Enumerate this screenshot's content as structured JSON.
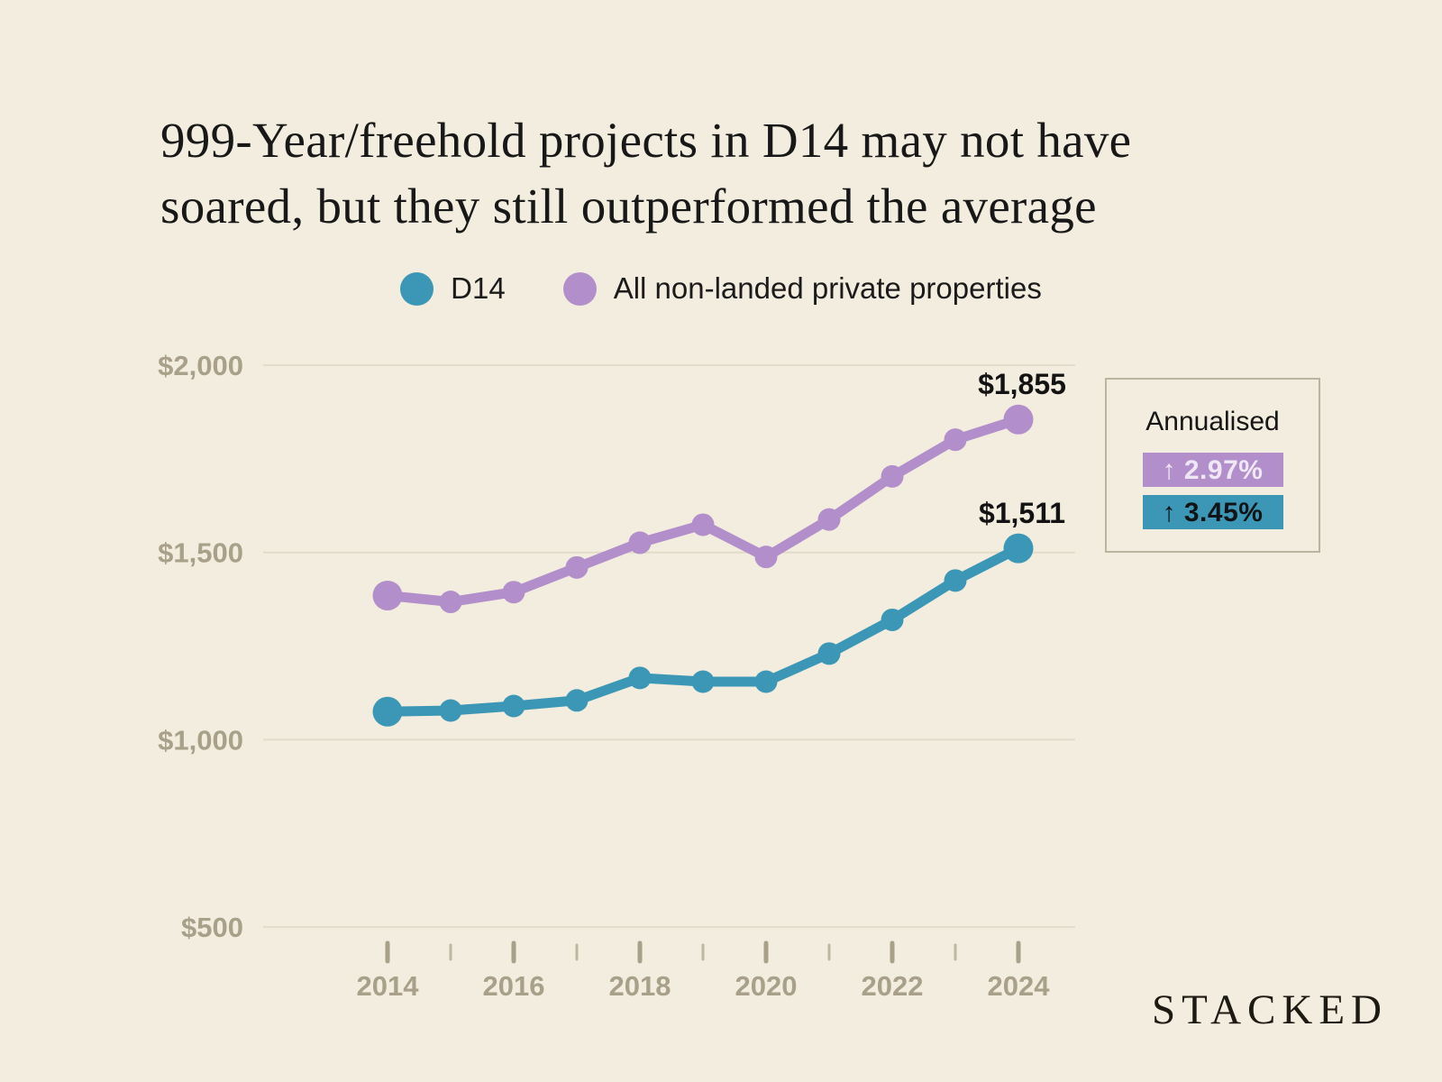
{
  "title": "999-Year/freehold projects in D14 may not have soared, but they still outperformed the average",
  "title_lines": [
    "999-Year/freehold projects in D14 may not have",
    "soared, but they still outperformed the average"
  ],
  "legend": [
    {
      "label": "D14",
      "color": "#3b97b5"
    },
    {
      "label": "All non-landed private properties",
      "color": "#b28fcb"
    }
  ],
  "annualised_box": {
    "title": "Annualised",
    "items": [
      {
        "series": "All non-landed private properties",
        "arrow": "↑",
        "value": "2.97%",
        "bg": "#b28fcb",
        "text_color": "#efe7f5"
      },
      {
        "series": "D14",
        "arrow": "↑",
        "value": "3.45%",
        "bg": "#3b97b5",
        "text_color": "#111417"
      }
    ]
  },
  "watermark": "STACKED",
  "colors": {
    "background": "#f2edde",
    "teal": "#3b97b5",
    "purple": "#b28fcb",
    "axis_text": "#a9a08a",
    "gridline": "#e2dcca",
    "minor_tick": "#beb6a1",
    "box_border": "#bcb49f",
    "label_text": "#131313"
  },
  "chart_data": {
    "type": "line",
    "x": [
      2014,
      2015,
      2016,
      2017,
      2018,
      2019,
      2020,
      2021,
      2022,
      2023,
      2024
    ],
    "x_tick_labels": [
      "2014",
      "2016",
      "2018",
      "2020",
      "2022",
      "2024"
    ],
    "y_ticks": [
      500,
      1000,
      1500,
      2000
    ],
    "y_tick_labels": [
      "$500",
      "$1,000",
      "$1,500",
      "$2,000"
    ],
    "ylim": [
      500,
      2000
    ],
    "grid": "horizontal",
    "legend_position": "top",
    "series": [
      {
        "name": "D14",
        "color": "#3b97b5",
        "values": [
          1075,
          1078,
          1090,
          1105,
          1165,
          1155,
          1155,
          1230,
          1320,
          1425,
          1511
        ],
        "end_label": "$1,511"
      },
      {
        "name": "All non-landed private properties",
        "color": "#b28fcb",
        "values": [
          1385,
          1368,
          1394,
          1460,
          1526,
          1574,
          1488,
          1588,
          1703,
          1801,
          1855
        ],
        "end_label": "$1,855"
      }
    ]
  }
}
